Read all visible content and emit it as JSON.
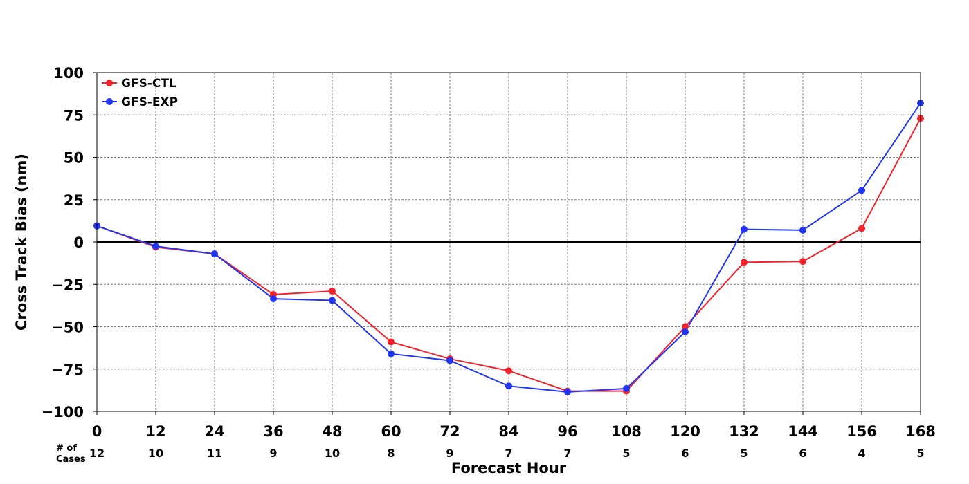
{
  "chart_data": {
    "type": "line",
    "title": "",
    "xlabel": "Forecast Hour",
    "ylabel": "Cross Track Bias (nm)",
    "x": [
      0,
      12,
      24,
      36,
      48,
      60,
      72,
      84,
      96,
      108,
      120,
      132,
      144,
      156,
      168
    ],
    "xlim": [
      0,
      168
    ],
    "ylim": [
      -100,
      100
    ],
    "yticks": [
      -100,
      -75,
      -50,
      -25,
      0,
      25,
      50,
      75,
      100
    ],
    "ytick_labels": [
      "−100",
      "−75",
      "−50",
      "−25",
      "0",
      "25",
      "50",
      "75",
      "100"
    ],
    "grid": true,
    "zero_line": true,
    "legend_position": "top-left",
    "cases_header": [
      "# of",
      "Cases"
    ],
    "cases": [
      "12",
      "10",
      "11",
      "9",
      "10",
      "8",
      "9",
      "7",
      "7",
      "5",
      "6",
      "5",
      "6",
      "4",
      "5"
    ],
    "series": [
      {
        "name": "GFS-CTL",
        "color": "#f5212a",
        "values": [
          9.5,
          -3,
          -7,
          -31,
          -29,
          -59,
          -69,
          -76,
          -88,
          -88,
          -50,
          -12,
          -11.5,
          8,
          73
        ]
      },
      {
        "name": "GFS-EXP",
        "color": "#2136f5",
        "values": [
          9.5,
          -2.5,
          -7,
          -33.5,
          -34.5,
          -66,
          -70,
          -85,
          -88.5,
          -86.5,
          -53,
          7.5,
          7,
          30.5,
          82
        ]
      }
    ]
  }
}
